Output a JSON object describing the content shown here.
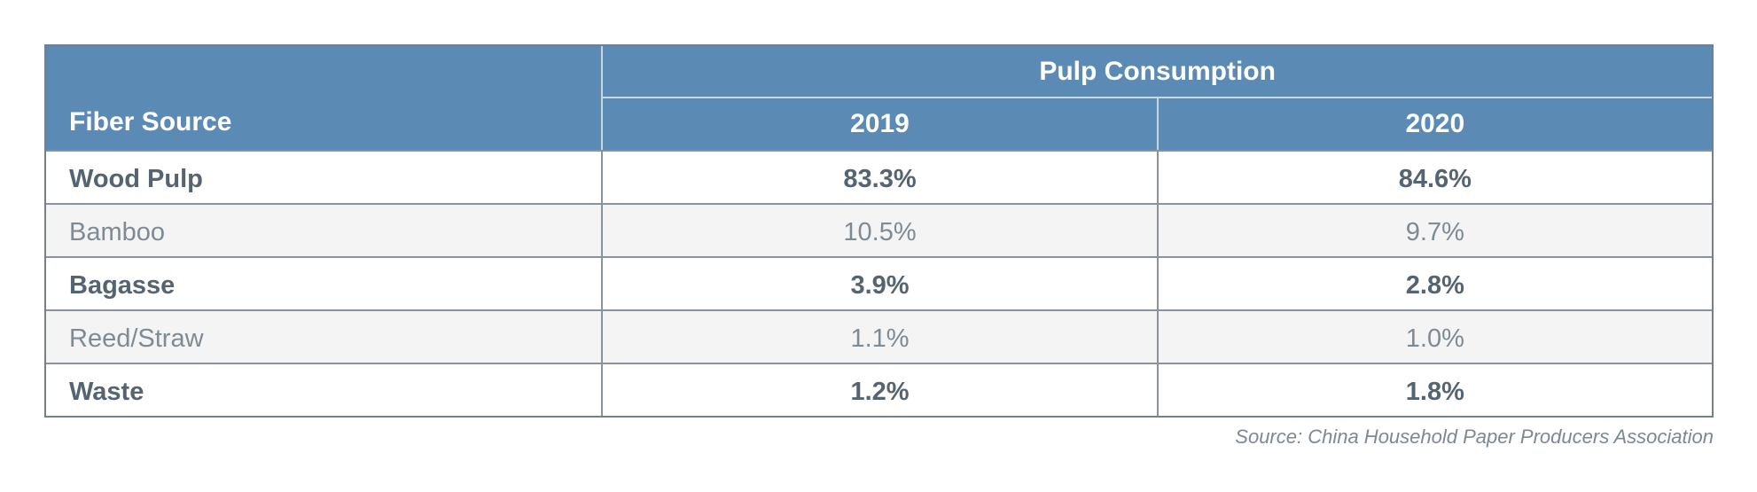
{
  "colors": {
    "header_bg": "#5B8AB5",
    "header_text": "#FFFFFF",
    "divider_light": "#C9D5E1",
    "divider_dark": "#8A939C",
    "border": "#74818D",
    "text_strong": "#546471",
    "text_light": "#7E8A94",
    "row_alt_bg": "#F4F4F5",
    "source_text": "#7D8893"
  },
  "table": {
    "header": {
      "row_header": "Fiber Source",
      "group_label": "Pulp Consumption",
      "years": [
        "2019",
        "2020"
      ]
    },
    "rows": [
      {
        "label": "Wood Pulp",
        "values": [
          "83.3%",
          "84.6%"
        ]
      },
      {
        "label": "Bamboo",
        "values": [
          "10.5%",
          "9.7%"
        ]
      },
      {
        "label": "Bagasse",
        "values": [
          "3.9%",
          "2.8%"
        ]
      },
      {
        "label": "Reed/Straw",
        "values": [
          "1.1%",
          "1.0%"
        ]
      },
      {
        "label": "Waste",
        "values": [
          "1.2%",
          "1.8%"
        ]
      }
    ]
  },
  "source_note": "Source: China Household Paper Producers Association",
  "chart_data": {
    "type": "table",
    "title": "Pulp Consumption",
    "row_header": "Fiber Source",
    "categories": [
      "Wood Pulp",
      "Bamboo",
      "Bagasse",
      "Reed/Straw",
      "Waste"
    ],
    "series": [
      {
        "name": "2019",
        "values": [
          83.3,
          10.5,
          3.9,
          1.1,
          1.2
        ]
      },
      {
        "name": "2020",
        "values": [
          84.6,
          9.7,
          2.8,
          1.0,
          1.8
        ]
      }
    ],
    "unit": "percent",
    "source": "Source: China Household Paper Producers Association"
  }
}
